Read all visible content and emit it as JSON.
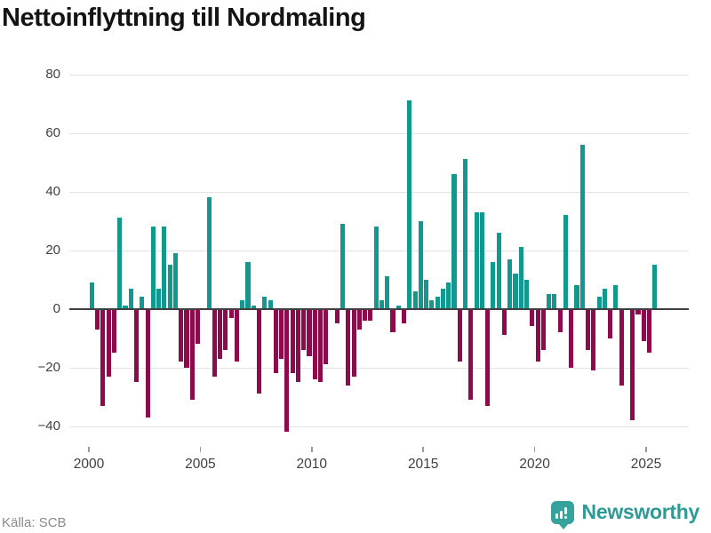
{
  "header": {
    "title": "Nettoinflyttning till Nordmaling"
  },
  "footer": {
    "source_label": "Källa: SCB",
    "brand": "Newsworthy"
  },
  "axes": {
    "y_tick_labels": [
      "80",
      "60",
      "40",
      "20",
      "0",
      "−20",
      "−40"
    ],
    "y_tick_values": [
      80,
      60,
      40,
      20,
      0,
      -20,
      -40
    ],
    "x_tick_labels": [
      "2000",
      "2005",
      "2010",
      "2015",
      "2020",
      "2025"
    ],
    "x_tick_years": [
      2000,
      2005,
      2010,
      2015,
      2020,
      2025
    ]
  },
  "colors": {
    "positive_bar": "#12998f",
    "negative_bar": "#8d0b4c",
    "zero_line": "#3f3f3f",
    "gridline": "#e3e3e3",
    "brand_teal": "#2d9a94"
  },
  "chart_data": {
    "type": "bar",
    "title": "Nettoinflyttning till Nordmaling",
    "source": "Källa: SCB",
    "frequency": "quarterly",
    "start": "2000-Q1",
    "end": "2025-Q2",
    "xlabel": "",
    "ylabel": "",
    "ylim": [
      -46,
      85
    ],
    "grid": true,
    "legend": "none",
    "y_ticks": [
      80,
      60,
      40,
      20,
      0,
      -20,
      -40
    ],
    "x_ticks": [
      2000,
      2005,
      2010,
      2015,
      2020,
      2025
    ],
    "values": [
      9,
      -7,
      -33,
      -23,
      -15,
      31,
      1,
      7,
      -25,
      4,
      -37,
      28,
      7,
      28,
      15,
      19,
      -18,
      -20,
      -31,
      -12,
      0,
      38,
      -23,
      -17,
      -14,
      -3,
      -18,
      3,
      16,
      1,
      -29,
      4,
      3,
      -22,
      -17,
      -42,
      -22,
      -25,
      -14,
      -16,
      -24,
      -25,
      -19,
      0,
      -5,
      29,
      -26,
      -23,
      -7,
      -4,
      -4,
      28,
      3,
      11,
      -8,
      1,
      -5,
      71,
      6,
      30,
      10,
      3,
      4,
      7,
      9,
      46,
      -18,
      51,
      -31,
      33,
      33,
      -33,
      16,
      26,
      -9,
      17,
      12,
      21,
      10,
      -6,
      -18,
      -14,
      5,
      5,
      -8,
      32,
      -20,
      8,
      56,
      -14,
      -21,
      4,
      7,
      -10,
      8,
      -26,
      0,
      -38,
      -2,
      -11,
      -15,
      15
    ]
  }
}
